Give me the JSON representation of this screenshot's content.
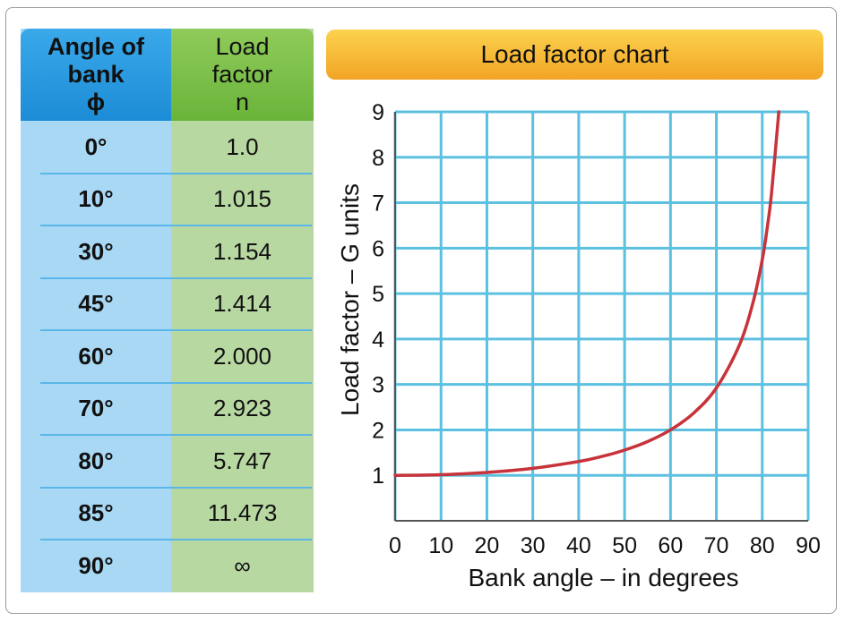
{
  "table": {
    "header_angle": [
      "Angle of",
      "bank",
      "ɸ"
    ],
    "header_load": [
      "Load",
      "factor",
      "n"
    ],
    "rows": [
      {
        "angle": "0°",
        "load": "1.0"
      },
      {
        "angle": "10°",
        "load": "1.015"
      },
      {
        "angle": "30°",
        "load": "1.154"
      },
      {
        "angle": "45°",
        "load": "1.414"
      },
      {
        "angle": "60°",
        "load": "2.000"
      },
      {
        "angle": "70°",
        "load": "2.923"
      },
      {
        "angle": "80°",
        "load": "5.747"
      },
      {
        "angle": "85°",
        "load": "11.473"
      },
      {
        "angle": "90°",
        "load": "∞"
      }
    ]
  },
  "chart_data": {
    "type": "line",
    "title": "Load factor chart",
    "xlabel": "Bank angle – in degrees",
    "ylabel": "Load factor – G units",
    "xlim": [
      0,
      90
    ],
    "ylim": [
      0,
      9
    ],
    "xticks": [
      "0",
      "10",
      "20",
      "30",
      "40",
      "50",
      "60",
      "70",
      "80",
      "90"
    ],
    "yticks": [
      "1",
      "2",
      "3",
      "4",
      "5",
      "6",
      "7",
      "8",
      "9"
    ],
    "grid": true,
    "series": [
      {
        "x": [
          0,
          10,
          20,
          30,
          40,
          45,
          50,
          55,
          60,
          65,
          70,
          75,
          78,
          80,
          81,
          82,
          83.6
        ],
        "y": [
          1.0,
          1.015,
          1.064,
          1.154,
          1.305,
          1.414,
          1.556,
          1.743,
          2.0,
          2.366,
          2.923,
          3.864,
          4.81,
          5.747,
          6.39,
          7.19,
          9.0
        ]
      }
    ],
    "colors": {
      "grid": "#5cc0e0",
      "line": "#c8323a",
      "axis": "#555555"
    }
  }
}
